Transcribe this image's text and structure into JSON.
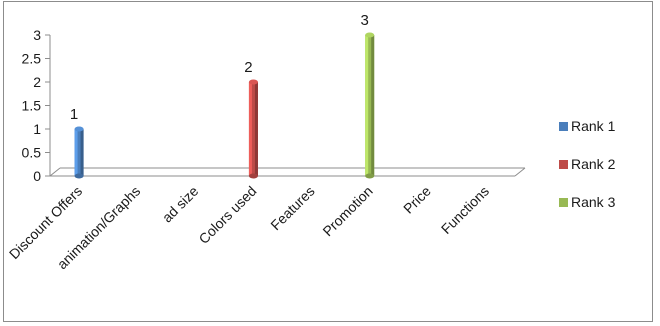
{
  "chart_data": {
    "type": "bar",
    "categories": [
      "Discount Offers",
      "animation/Graphs",
      "ad size",
      "Colors used",
      "Features",
      "Promotion",
      "Price",
      "Functions"
    ],
    "series": [
      {
        "name": "Rank 1",
        "color": "#4a7ebb",
        "values": [
          1,
          0,
          0,
          0,
          0,
          0,
          0,
          0
        ]
      },
      {
        "name": "Rank 2",
        "color": "#be4b48",
        "values": [
          0,
          0,
          0,
          2,
          0,
          0,
          0,
          0
        ]
      },
      {
        "name": "Rank 3",
        "color": "#98b954",
        "values": [
          0,
          0,
          0,
          0,
          0,
          3,
          0,
          0
        ]
      }
    ],
    "data_labels": [
      {
        "category": "Discount Offers",
        "series": "Rank 1",
        "text": "1"
      },
      {
        "category": "Colors used",
        "series": "Rank 2",
        "text": "2"
      },
      {
        "category": "Promotion",
        "series": "Rank 3",
        "text": "3"
      }
    ],
    "y_ticks": [
      "0",
      "0.5",
      "1",
      "1.5",
      "2",
      "2.5",
      "3"
    ],
    "ylim": [
      0,
      3
    ],
    "grid": false,
    "three_d": true,
    "legend_position": "right"
  }
}
